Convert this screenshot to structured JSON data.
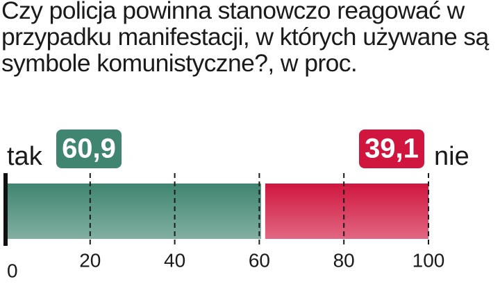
{
  "chart_data": {
    "type": "bar",
    "orientation": "horizontal",
    "stacked": true,
    "title": "Czy policja powinna stanowczo reagować w przypadku manifestacji, w których używane są symbole komunistyczne?, w proc.",
    "series": [
      {
        "name": "tak",
        "color": "#3f8570",
        "values": [
          60.9
        ],
        "value_labels": [
          "60,9"
        ]
      },
      {
        "name": "nie",
        "color": "#d0163f",
        "values": [
          39.1
        ],
        "value_labels": [
          "39,1"
        ]
      }
    ],
    "xlim": [
      0,
      100
    ],
    "xticks": [
      0,
      20,
      40,
      60,
      80,
      100
    ],
    "grid": true
  }
}
